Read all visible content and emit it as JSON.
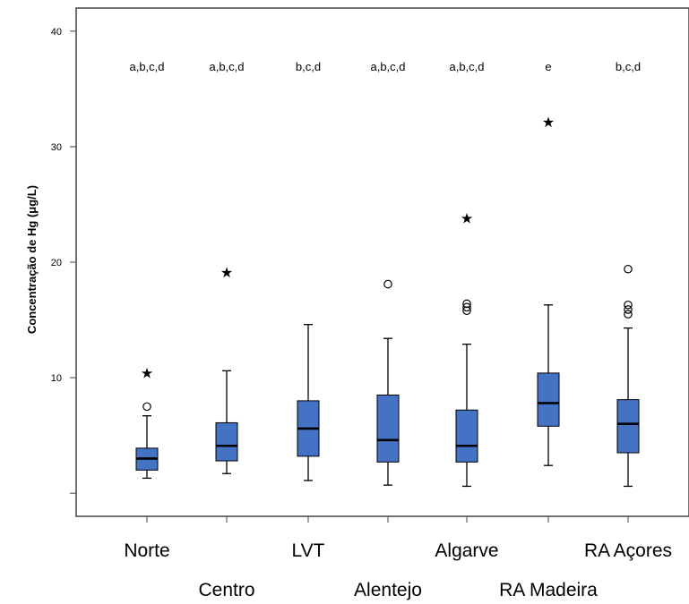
{
  "chart_data": {
    "type": "box",
    "ylabel": "Concentração de Hg (μg/L)",
    "xlabel": "",
    "ylim": [
      -2,
      42
    ],
    "yticks": [
      {
        "value": 10,
        "label": "10"
      },
      {
        "value": 20,
        "label": "20"
      },
      {
        "value": 30,
        "label": "30"
      },
      {
        "value": 40,
        "label": "40"
      }
    ],
    "grid": false,
    "box_color": "#4472c4",
    "categories": [
      "Norte",
      "Centro",
      "LVT",
      "Alentejo",
      "Algarve",
      "RA Madeira",
      "RA Açores"
    ],
    "group_labels": [
      "a,b,c,d",
      "a,b,c,d",
      "b,c,d",
      "a,b,c,d",
      "a,b,c,d",
      "e",
      "b,c,d"
    ],
    "boxes": [
      {
        "min": 1.3,
        "q1": 2.0,
        "median": 3.0,
        "q3": 3.9,
        "max": 6.7,
        "outliers": [
          7.5
        ],
        "extremes": [
          10.6
        ]
      },
      {
        "min": 1.7,
        "q1": 2.8,
        "median": 4.1,
        "q3": 6.1,
        "max": 10.6,
        "outliers": [],
        "extremes": [
          19.3
        ]
      },
      {
        "min": 1.1,
        "q1": 3.2,
        "median": 5.6,
        "q3": 8.0,
        "max": 14.6,
        "outliers": [],
        "extremes": []
      },
      {
        "min": 0.7,
        "q1": 2.7,
        "median": 4.6,
        "q3": 8.5,
        "max": 13.4,
        "outliers": [
          18.1
        ],
        "extremes": []
      },
      {
        "min": 0.6,
        "q1": 2.7,
        "median": 4.1,
        "q3": 7.2,
        "max": 12.9,
        "outliers": [
          15.8,
          16.1,
          16.4
        ],
        "extremes": [
          24.0
        ]
      },
      {
        "min": 2.4,
        "q1": 5.8,
        "median": 7.8,
        "q3": 10.4,
        "max": 16.3,
        "outliers": [],
        "extremes": [
          32.3
        ]
      },
      {
        "min": 0.6,
        "q1": 3.5,
        "median": 6.0,
        "q3": 8.1,
        "max": 14.3,
        "outliers": [
          15.5,
          15.9,
          16.3,
          19.4
        ],
        "extremes": []
      }
    ]
  }
}
